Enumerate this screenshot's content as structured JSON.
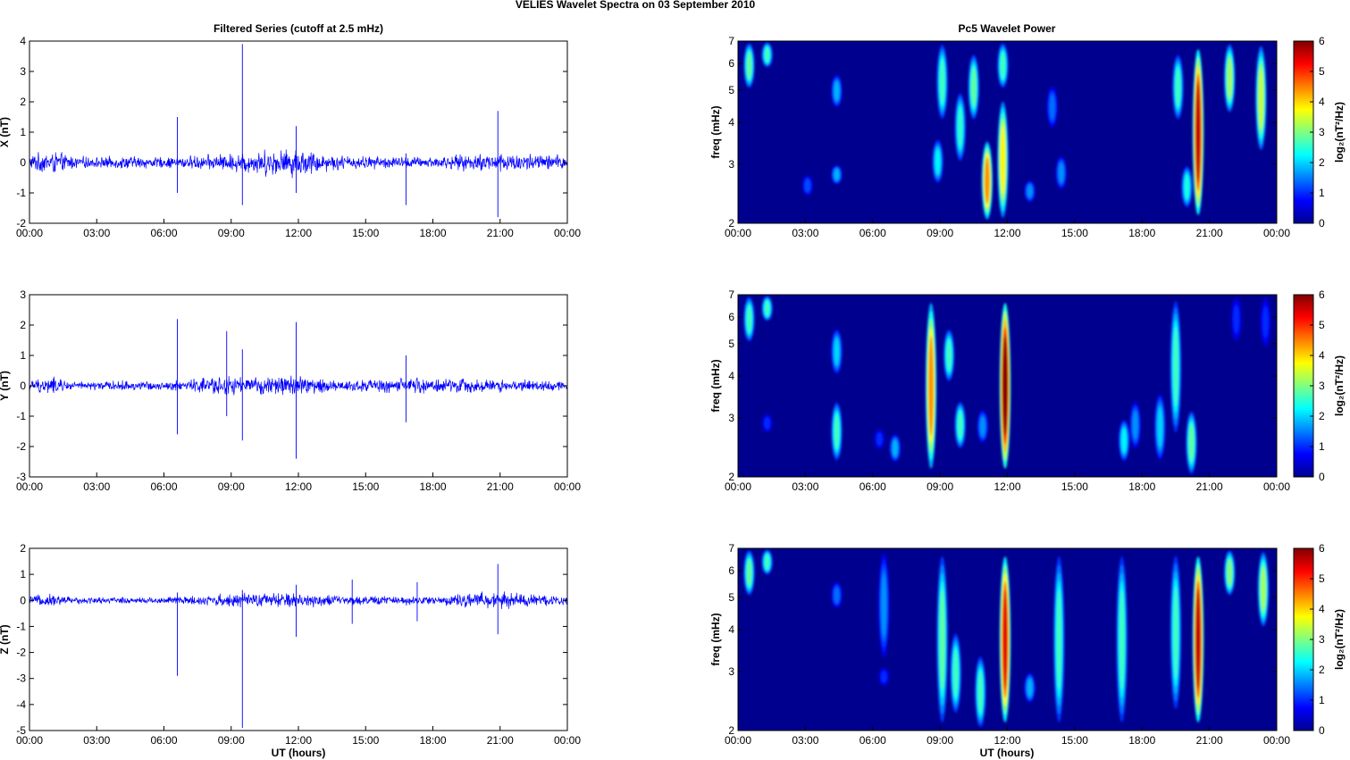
{
  "figure": {
    "title": "VELIES Wavelet Spectra on 03 September 2010",
    "left_title": "Filtered Series (cutoff at 2.5 mHz)",
    "right_title": "Pc5 Wavelet Power",
    "xlabel": "UT (hours)"
  },
  "colors": {
    "trace": "#0000ff",
    "background": "#00008f"
  },
  "chart_data": [
    {
      "type": "line",
      "panel": "X",
      "ylabel": "X (nT)",
      "ylim": [
        -2,
        4
      ],
      "yticks": [
        -2,
        -1,
        0,
        1,
        2,
        3,
        4
      ],
      "xlim": [
        0,
        24
      ],
      "xticklabels": [
        "00:00",
        "03:00",
        "06:00",
        "09:00",
        "12:00",
        "15:00",
        "18:00",
        "21:00",
        "00:00"
      ],
      "noise_envelope": [
        [
          0,
          0.3
        ],
        [
          1,
          0.45
        ],
        [
          2,
          0.25
        ],
        [
          3,
          0.2
        ],
        [
          4.5,
          0.25
        ],
        [
          6,
          0.2
        ],
        [
          9,
          0.35
        ],
        [
          10.5,
          0.5
        ],
        [
          12,
          0.55
        ],
        [
          13.5,
          0.3
        ],
        [
          15,
          0.25
        ],
        [
          18,
          0.22
        ],
        [
          21,
          0.4
        ],
        [
          23.5,
          0.3
        ],
        [
          24,
          0.3
        ]
      ],
      "spikes": [
        [
          6.6,
          1.5,
          -1.0
        ],
        [
          9.5,
          3.9,
          -1.4
        ],
        [
          11.9,
          1.2,
          -1.0
        ],
        [
          16.8,
          0.3,
          -1.4
        ],
        [
          20.9,
          1.7,
          -1.8
        ]
      ]
    },
    {
      "type": "line",
      "panel": "Y",
      "ylabel": "Y (nT)",
      "ylim": [
        -3,
        3
      ],
      "yticks": [
        -3,
        -2,
        -1,
        0,
        1,
        2,
        3
      ],
      "xlim": [
        0,
        24
      ],
      "xticklabels": [
        "00:00",
        "03:00",
        "06:00",
        "09:00",
        "12:00",
        "15:00",
        "18:00",
        "21:00",
        "00:00"
      ],
      "noise_envelope": [
        [
          0,
          0.2
        ],
        [
          1,
          0.35
        ],
        [
          2,
          0.15
        ],
        [
          4.5,
          0.2
        ],
        [
          6,
          0.15
        ],
        [
          8.5,
          0.4
        ],
        [
          10,
          0.3
        ],
        [
          12,
          0.45
        ],
        [
          13.5,
          0.2
        ],
        [
          16.5,
          0.3
        ],
        [
          18,
          0.3
        ],
        [
          21,
          0.25
        ],
        [
          24,
          0.2
        ]
      ],
      "spikes": [
        [
          6.6,
          2.2,
          -1.6
        ],
        [
          8.8,
          1.8,
          -1.0
        ],
        [
          9.5,
          1.2,
          -1.8
        ],
        [
          11.9,
          2.1,
          -2.4
        ],
        [
          16.8,
          1.0,
          -1.2
        ]
      ]
    },
    {
      "type": "line",
      "panel": "Z",
      "ylabel": "Z (nT)",
      "ylim": [
        -5,
        2
      ],
      "yticks": [
        -5,
        -4,
        -3,
        -2,
        -1,
        0,
        1,
        2
      ],
      "xlim": [
        0,
        24
      ],
      "xticklabels": [
        "00:00",
        "03:00",
        "06:00",
        "09:00",
        "12:00",
        "15:00",
        "18:00",
        "21:00",
        "00:00"
      ],
      "noise_envelope": [
        [
          0,
          0.2
        ],
        [
          1,
          0.3
        ],
        [
          2,
          0.15
        ],
        [
          6,
          0.15
        ],
        [
          9,
          0.3
        ],
        [
          12,
          0.35
        ],
        [
          14,
          0.2
        ],
        [
          18,
          0.2
        ],
        [
          20.9,
          0.4
        ],
        [
          24,
          0.2
        ]
      ],
      "spikes": [
        [
          6.6,
          0.3,
          -2.9
        ],
        [
          9.5,
          0.4,
          -4.9
        ],
        [
          11.9,
          0.6,
          -1.4
        ],
        [
          14.4,
          0.8,
          -0.9
        ],
        [
          17.3,
          0.7,
          -0.8
        ],
        [
          20.9,
          1.4,
          -1.3
        ]
      ]
    },
    {
      "type": "heatmap",
      "panel": "X",
      "ylabel": "freq (mHz)",
      "yscale": "log",
      "ylim": [
        2,
        7
      ],
      "yticks": [
        2,
        3,
        4,
        5,
        6,
        7
      ],
      "xlim": [
        0,
        24
      ],
      "xticklabels": [
        "00:00",
        "03:00",
        "06:00",
        "09:00",
        "12:00",
        "15:00",
        "18:00",
        "21:00",
        "00:00"
      ],
      "colorbar": {
        "label": "log₂(nT²/Hz)",
        "range": [
          0,
          6
        ],
        "ticks": [
          0,
          1,
          2,
          3,
          4,
          5,
          6
        ]
      },
      "blobs": [
        {
          "t": 0.5,
          "f0": 5.0,
          "f1": 7.0,
          "p": 2.8
        },
        {
          "t": 1.3,
          "f0": 5.8,
          "f1": 7.0,
          "p": 2.6
        },
        {
          "t": 3.1,
          "f0": 2.4,
          "f1": 2.8,
          "p": 1.2
        },
        {
          "t": 4.4,
          "f0": 4.4,
          "f1": 5.6,
          "p": 1.8
        },
        {
          "t": 4.4,
          "f0": 2.6,
          "f1": 3.0,
          "p": 1.8
        },
        {
          "t": 8.9,
          "f0": 2.6,
          "f1": 3.6,
          "p": 2.2
        },
        {
          "t": 9.1,
          "f0": 4.0,
          "f1": 7.0,
          "p": 2.6
        },
        {
          "t": 9.9,
          "f0": 3.0,
          "f1": 5.0,
          "p": 2.5
        },
        {
          "t": 10.5,
          "f0": 4.0,
          "f1": 6.5,
          "p": 2.8
        },
        {
          "t": 11.1,
          "f0": 2.0,
          "f1": 3.6,
          "p": 4.4
        },
        {
          "t": 11.8,
          "f0": 2.0,
          "f1": 4.8,
          "p": 3.8
        },
        {
          "t": 11.8,
          "f0": 5.0,
          "f1": 7.0,
          "p": 2.6
        },
        {
          "t": 13.0,
          "f0": 2.3,
          "f1": 2.7,
          "p": 1.6
        },
        {
          "t": 14.4,
          "f0": 2.5,
          "f1": 3.2,
          "p": 1.6
        },
        {
          "t": 14.0,
          "f0": 3.8,
          "f1": 5.2,
          "p": 1.4
        },
        {
          "t": 19.6,
          "f0": 4.0,
          "f1": 6.5,
          "p": 2.6
        },
        {
          "t": 20.0,
          "f0": 2.2,
          "f1": 3.0,
          "p": 2.4
        },
        {
          "t": 20.5,
          "f0": 2.0,
          "f1": 7.0,
          "p": 5.6
        },
        {
          "t": 21.9,
          "f0": 4.2,
          "f1": 7.0,
          "p": 3.2
        },
        {
          "t": 23.3,
          "f0": 3.2,
          "f1": 7.0,
          "p": 3.4
        }
      ]
    },
    {
      "type": "heatmap",
      "panel": "Y",
      "ylabel": "freq (mHz)",
      "yscale": "log",
      "ylim": [
        2,
        7
      ],
      "yticks": [
        2,
        3,
        4,
        5,
        6,
        7
      ],
      "xlim": [
        0,
        24
      ],
      "xticklabels": [
        "00:00",
        "03:00",
        "06:00",
        "09:00",
        "12:00",
        "15:00",
        "18:00",
        "21:00",
        "00:00"
      ],
      "colorbar": {
        "label": "log₂(nT²/Hz)",
        "range": [
          0,
          6
        ],
        "ticks": [
          0,
          1,
          2,
          3,
          4,
          5,
          6
        ]
      },
      "blobs": [
        {
          "t": 0.5,
          "f0": 5.0,
          "f1": 7.0,
          "p": 2.6
        },
        {
          "t": 1.3,
          "f0": 5.8,
          "f1": 7.0,
          "p": 2.6
        },
        {
          "t": 1.3,
          "f0": 2.7,
          "f1": 3.1,
          "p": 1.0
        },
        {
          "t": 4.4,
          "f0": 2.2,
          "f1": 3.4,
          "p": 2.6
        },
        {
          "t": 4.4,
          "f0": 4.0,
          "f1": 5.6,
          "p": 2.0
        },
        {
          "t": 6.3,
          "f0": 2.4,
          "f1": 2.8,
          "p": 1.0
        },
        {
          "t": 7.0,
          "f0": 2.2,
          "f1": 2.7,
          "p": 1.8
        },
        {
          "t": 8.6,
          "f0": 2.0,
          "f1": 7.0,
          "p": 4.4
        },
        {
          "t": 9.4,
          "f0": 3.8,
          "f1": 5.6,
          "p": 2.6
        },
        {
          "t": 9.9,
          "f0": 2.4,
          "f1": 3.4,
          "p": 2.6
        },
        {
          "t": 10.9,
          "f0": 2.5,
          "f1": 3.2,
          "p": 1.6
        },
        {
          "t": 11.9,
          "f0": 2.0,
          "f1": 7.0,
          "p": 6.0
        },
        {
          "t": 17.2,
          "f0": 2.2,
          "f1": 3.0,
          "p": 2.2
        },
        {
          "t": 17.7,
          "f0": 2.4,
          "f1": 3.4,
          "p": 1.6
        },
        {
          "t": 18.8,
          "f0": 2.2,
          "f1": 3.6,
          "p": 2.0
        },
        {
          "t": 19.5,
          "f0": 2.6,
          "f1": 7.0,
          "p": 2.6
        },
        {
          "t": 20.2,
          "f0": 2.0,
          "f1": 3.2,
          "p": 2.8
        },
        {
          "t": 22.2,
          "f0": 5.0,
          "f1": 7.0,
          "p": 1.0
        },
        {
          "t": 23.5,
          "f0": 4.8,
          "f1": 7.0,
          "p": 1.0
        }
      ]
    },
    {
      "type": "heatmap",
      "panel": "Z",
      "ylabel": "freq (mHz)",
      "yscale": "log",
      "ylim": [
        2,
        7
      ],
      "yticks": [
        2,
        3,
        4,
        5,
        6,
        7
      ],
      "xlim": [
        0,
        24
      ],
      "xticklabels": [
        "00:00",
        "03:00",
        "06:00",
        "09:00",
        "12:00",
        "15:00",
        "18:00",
        "21:00",
        "00:00"
      ],
      "colorbar": {
        "label": "log₂(nT²/Hz)",
        "range": [
          0,
          6
        ],
        "ticks": [
          0,
          1,
          2,
          3,
          4,
          5,
          6
        ]
      },
      "blobs": [
        {
          "t": 0.5,
          "f0": 5.0,
          "f1": 7.0,
          "p": 2.8
        },
        {
          "t": 1.3,
          "f0": 5.8,
          "f1": 7.0,
          "p": 2.6
        },
        {
          "t": 4.4,
          "f0": 4.6,
          "f1": 5.6,
          "p": 1.4
        },
        {
          "t": 6.5,
          "f0": 2.7,
          "f1": 3.1,
          "p": 1.0
        },
        {
          "t": 6.5,
          "f0": 3.2,
          "f1": 7.0,
          "p": 1.6
        },
        {
          "t": 9.1,
          "f0": 2.0,
          "f1": 7.0,
          "p": 2.8
        },
        {
          "t": 9.7,
          "f0": 2.2,
          "f1": 4.0,
          "p": 2.6
        },
        {
          "t": 10.8,
          "f0": 2.0,
          "f1": 3.4,
          "p": 2.6
        },
        {
          "t": 11.9,
          "f0": 2.0,
          "f1": 7.0,
          "p": 5.4
        },
        {
          "t": 13.0,
          "f0": 2.4,
          "f1": 3.0,
          "p": 1.8
        },
        {
          "t": 14.3,
          "f0": 2.0,
          "f1": 7.0,
          "p": 2.6
        },
        {
          "t": 17.1,
          "f0": 2.0,
          "f1": 7.0,
          "p": 2.6
        },
        {
          "t": 19.5,
          "f0": 2.2,
          "f1": 7.0,
          "p": 2.6
        },
        {
          "t": 20.5,
          "f0": 2.0,
          "f1": 7.0,
          "p": 5.6
        },
        {
          "t": 21.9,
          "f0": 5.0,
          "f1": 7.0,
          "p": 3.0
        },
        {
          "t": 23.4,
          "f0": 4.0,
          "f1": 7.0,
          "p": 3.2
        }
      ]
    }
  ]
}
